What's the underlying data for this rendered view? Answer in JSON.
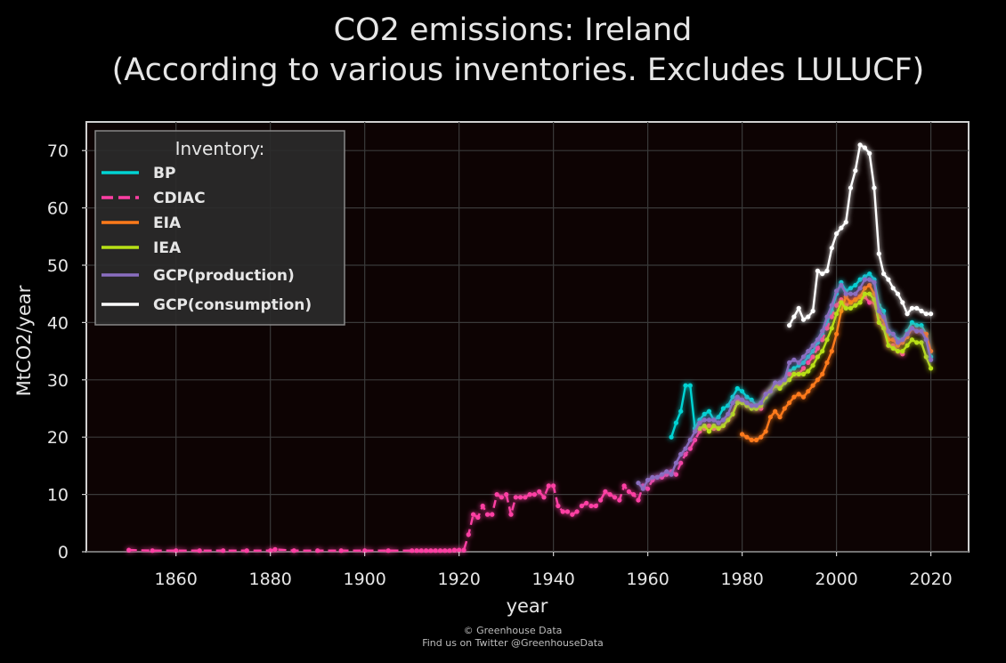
{
  "chart_data": {
    "type": "line",
    "title": "CO2 emissions: Ireland",
    "subtitle": "(According to various inventories. Excludes LULUCF)",
    "xlabel": "year",
    "ylabel": "MtCO2/year",
    "xlim": [
      1841,
      2028
    ],
    "ylim": [
      0,
      75
    ],
    "xticks": [
      1860,
      1880,
      1900,
      1920,
      1940,
      1960,
      1980,
      2000,
      2020
    ],
    "yticks": [
      0,
      10,
      20,
      30,
      40,
      50,
      60,
      70
    ],
    "grid": true,
    "legend": {
      "title": "Inventory:",
      "placement": "top-left"
    },
    "series": [
      {
        "name": "BP",
        "color": "#00d4d4",
        "dash": "solid",
        "x": [
          1965,
          1966,
          1967,
          1968,
          1969,
          1970,
          1971,
          1972,
          1973,
          1974,
          1975,
          1976,
          1977,
          1978,
          1979,
          1980,
          1981,
          1982,
          1983,
          1984,
          1985,
          1986,
          1987,
          1988,
          1989,
          1990,
          1991,
          1992,
          1993,
          1994,
          1995,
          1996,
          1997,
          1998,
          1999,
          2000,
          2001,
          2002,
          2003,
          2004,
          2005,
          2006,
          2007,
          2008,
          2009,
          2010,
          2011,
          2012,
          2013,
          2014,
          2015,
          2016,
          2017,
          2018,
          2019,
          2020
        ],
        "y": [
          20,
          22.5,
          24.5,
          29,
          29,
          21.5,
          23,
          24,
          24.5,
          23,
          23.5,
          25,
          25.5,
          27,
          28.5,
          28,
          27,
          26.5,
          25.5,
          26,
          27,
          28,
          29,
          29,
          30,
          31.5,
          32,
          32.5,
          33,
          34,
          35,
          36.5,
          38,
          40,
          42,
          45,
          47,
          45.5,
          46,
          46.5,
          47.5,
          48,
          48.5,
          47.5,
          43,
          42,
          38,
          38,
          37,
          37,
          38.5,
          40,
          39.5,
          39.5,
          38,
          34
        ]
      },
      {
        "name": "CDIAC",
        "color": "#ff3fa4",
        "dash": "dashed",
        "x": [
          1850,
          1855,
          1860,
          1865,
          1870,
          1875,
          1880,
          1881,
          1885,
          1890,
          1895,
          1900,
          1905,
          1910,
          1911,
          1912,
          1913,
          1914,
          1915,
          1916,
          1917,
          1918,
          1919,
          1920,
          1921,
          1922,
          1923,
          1924,
          1925,
          1926,
          1927,
          1928,
          1929,
          1930,
          1931,
          1932,
          1933,
          1934,
          1935,
          1936,
          1937,
          1938,
          1939,
          1940,
          1941,
          1942,
          1943,
          1944,
          1945,
          1946,
          1947,
          1948,
          1949,
          1950,
          1951,
          1952,
          1953,
          1954,
          1955,
          1956,
          1957,
          1958,
          1959,
          1960,
          1961,
          1962,
          1963,
          1964,
          1965,
          1966,
          1967,
          1968,
          1969,
          1970,
          1971,
          1972,
          1973,
          1974,
          1975,
          1976,
          1977,
          1978,
          1979,
          1980,
          1981,
          1982,
          1983,
          1984,
          1985,
          1986,
          1987,
          1988,
          1989,
          1990,
          1991,
          1992,
          1993,
          1994,
          1995,
          1996,
          1997,
          1998,
          1999,
          2000,
          2001,
          2002,
          2003,
          2004,
          2005,
          2006,
          2007,
          2008,
          2009,
          2010,
          2011,
          2012,
          2013,
          2014
        ],
        "y": [
          0.3,
          0.2,
          0.2,
          0.2,
          0.2,
          0.2,
          0.2,
          0.4,
          0.2,
          0.2,
          0.2,
          0.2,
          0.2,
          0.2,
          0.2,
          0.2,
          0.2,
          0.2,
          0.2,
          0.2,
          0.2,
          0.2,
          0.3,
          0.3,
          0.3,
          3,
          6.5,
          6,
          8,
          6.5,
          6.5,
          10,
          9.5,
          10,
          6.5,
          9.5,
          9.5,
          9.5,
          10,
          10,
          10.5,
          9.5,
          11.5,
          11.5,
          8,
          7,
          7,
          6.5,
          7,
          8,
          8.5,
          8,
          8,
          9,
          10.5,
          10,
          9.5,
          9,
          11.5,
          10.5,
          10,
          9,
          11.5,
          11,
          12.5,
          13,
          13,
          13.5,
          14,
          13.5,
          15.5,
          17,
          18,
          19.5,
          21,
          21.5,
          22,
          21.5,
          21.5,
          22,
          23,
          24,
          26.5,
          26.5,
          25.5,
          25.5,
          25,
          25,
          27.5,
          28,
          29,
          29,
          30,
          31,
          31,
          31,
          32,
          33,
          34,
          35.5,
          37,
          39,
          41,
          43,
          44,
          43,
          43.5,
          44,
          44.5,
          44.5,
          43.5,
          43.5,
          40,
          39.5,
          36,
          36,
          35,
          34.5
        ]
      },
      {
        "name": "EIA",
        "color": "#ff7a1a",
        "dash": "solid",
        "x": [
          1980,
          1981,
          1982,
          1983,
          1984,
          1985,
          1986,
          1987,
          1988,
          1989,
          1990,
          1991,
          1992,
          1993,
          1994,
          1995,
          1996,
          1997,
          1998,
          1999,
          2000,
          2001,
          2002,
          2003,
          2004,
          2005,
          2006,
          2007,
          2008,
          2009,
          2010,
          2011,
          2012,
          2013,
          2014,
          2015,
          2016,
          2017,
          2018,
          2019,
          2020
        ],
        "y": [
          20.5,
          20,
          19.5,
          19.5,
          20,
          21,
          23.5,
          24.5,
          23.5,
          25,
          26,
          27,
          27.5,
          27,
          28,
          29,
          30,
          31,
          33,
          35,
          38,
          42,
          44.5,
          43.5,
          44,
          44.5,
          46,
          46.5,
          45,
          41,
          40.5,
          37,
          37,
          36,
          36.5,
          37.5,
          39,
          38.5,
          38.5,
          38,
          35
        ]
      },
      {
        "name": "IEA",
        "color": "#b8e016",
        "dash": "solid",
        "x": [
          1971,
          1972,
          1973,
          1974,
          1975,
          1976,
          1977,
          1978,
          1979,
          1980,
          1981,
          1982,
          1983,
          1984,
          1985,
          1986,
          1987,
          1988,
          1989,
          1990,
          1991,
          1992,
          1993,
          1994,
          1995,
          1996,
          1997,
          1998,
          1999,
          2000,
          2001,
          2002,
          2003,
          2004,
          2005,
          2006,
          2007,
          2008,
          2009,
          2010,
          2011,
          2012,
          2013,
          2014,
          2015,
          2016,
          2017,
          2018,
          2019,
          2020
        ],
        "y": [
          21.5,
          22,
          21,
          22,
          21.5,
          22,
          23,
          24,
          26,
          26,
          25.5,
          25,
          25,
          25.5,
          27,
          28,
          29,
          28.5,
          29.5,
          30,
          31,
          31,
          31,
          31.5,
          32.5,
          34,
          35,
          37,
          39,
          41.5,
          43.5,
          42.5,
          42.5,
          43,
          43.5,
          45,
          45,
          44,
          40,
          39,
          36,
          35.5,
          35,
          35,
          36,
          37,
          36.5,
          36.5,
          34,
          32
        ]
      },
      {
        "name": "GCP(production)",
        "color": "#8a6ec0",
        "dash": "solid",
        "x": [
          1958,
          1959,
          1960,
          1961,
          1962,
          1963,
          1964,
          1965,
          1966,
          1967,
          1968,
          1969,
          1970,
          1971,
          1972,
          1973,
          1974,
          1975,
          1976,
          1977,
          1978,
          1979,
          1980,
          1981,
          1982,
          1983,
          1984,
          1985,
          1986,
          1987,
          1988,
          1989,
          1990,
          1991,
          1992,
          1993,
          1994,
          1995,
          1996,
          1997,
          1998,
          1999,
          2000,
          2001,
          2002,
          2003,
          2004,
          2005,
          2006,
          2007,
          2008,
          2009,
          2010,
          2011,
          2012,
          2013,
          2014,
          2015,
          2016,
          2017,
          2018,
          2019,
          2020
        ],
        "y": [
          12,
          11,
          12.5,
          13,
          13,
          13.5,
          14,
          13.5,
          15.5,
          17,
          18,
          19.5,
          21,
          22.5,
          23,
          23,
          23,
          22.5,
          23,
          24,
          26,
          27,
          26.5,
          26,
          25.5,
          25.5,
          26,
          27.5,
          28,
          29.5,
          29.5,
          30,
          33,
          33.5,
          33,
          34,
          35,
          36,
          37,
          38.5,
          41,
          43,
          45.5,
          46.5,
          45,
          45,
          45,
          46,
          47.5,
          47.5,
          47,
          42,
          41,
          38.5,
          38,
          36.5,
          37,
          38,
          39,
          38.5,
          38.5,
          37,
          33.5
        ]
      },
      {
        "name": "GCP(consumption)",
        "color": "#ffffff",
        "dash": "solid",
        "x": [
          1990,
          1991,
          1992,
          1993,
          1994,
          1995,
          1996,
          1997,
          1998,
          1999,
          2000,
          2001,
          2002,
          2003,
          2004,
          2005,
          2006,
          2007,
          2008,
          2009,
          2010,
          2011,
          2012,
          2013,
          2014,
          2015,
          2016,
          2017,
          2018,
          2019,
          2020
        ],
        "y": [
          39.5,
          41,
          42.5,
          40.5,
          41,
          42,
          49,
          48.5,
          49,
          53,
          55.5,
          56.5,
          57.5,
          63.5,
          66.5,
          71,
          70.5,
          69.5,
          63.5,
          52,
          48.5,
          47.5,
          46,
          45,
          43.5,
          41.5,
          42.5,
          42.5,
          42,
          41.5,
          41.5
        ]
      }
    ]
  },
  "credit": {
    "line1": "© Greenhouse Data",
    "line2": "Find us on Twitter @GreenhouseData"
  }
}
